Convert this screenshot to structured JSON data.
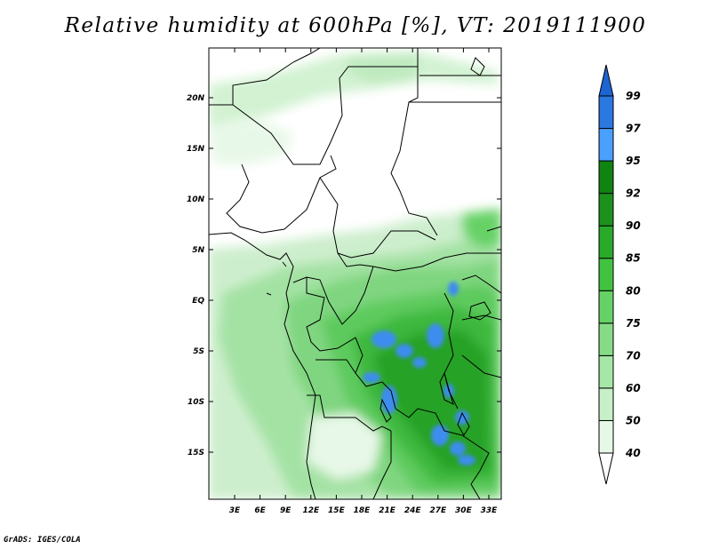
{
  "title": "Relative humidity at 600hPa [%], VT: 2019111900",
  "credit": "GrADS: IGES/COLA",
  "map": {
    "lat_labels": [
      "20N",
      "15N",
      "10N",
      "5N",
      "EQ",
      "5S",
      "10S",
      "15S"
    ],
    "lon_labels": [
      "3E",
      "6E",
      "9E",
      "12E",
      "15E",
      "18E",
      "21E",
      "24E",
      "27E",
      "30E",
      "33E"
    ]
  },
  "colorbar": {
    "levels": [
      "40",
      "50",
      "60",
      "70",
      "75",
      "80",
      "85",
      "90",
      "92",
      "95",
      "97",
      "99"
    ],
    "colors": [
      "#ffffff",
      "#e6f8e6",
      "#c8f0c8",
      "#a6e6a6",
      "#86dc86",
      "#66d266",
      "#42c242",
      "#2aaa2a",
      "#1c921c",
      "#118311",
      "#4aa0ff",
      "#2a78e0",
      "#1c64d2"
    ]
  }
}
